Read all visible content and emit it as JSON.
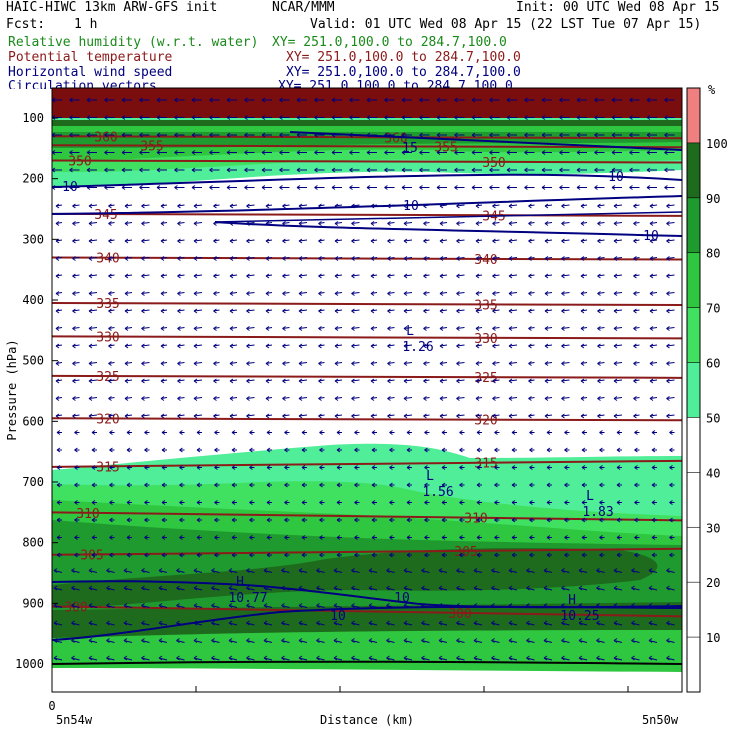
{
  "header": {
    "model": "HAIC-HIWC 13km ARW-GFS init",
    "org": "NCAR/MMM",
    "init": "Init: 00 UTC Wed 08 Apr 15",
    "fcst_label": "Fcst:",
    "fcst_value": "1 h",
    "valid": "Valid: 01 UTC Wed 08 Apr 15 (22 LST Tue 07 Apr 15)",
    "fields": [
      {
        "name": "Relative humidity (w.r.t. water)",
        "xy": "XY= 251.0,100.0 to 284.7,100.0",
        "color": "#1a8a1a"
      },
      {
        "name": "Potential temperature",
        "xy": "XY= 251.0,100.0 to 284.7,100.0",
        "color": "#8b1a1a"
      },
      {
        "name": "Horizontal wind speed",
        "xy": "XY= 251.0,100.0 to 284.7,100.0",
        "color": "#000080"
      },
      {
        "name": "Circulation vectors",
        "xy": "XY= 251.0,100.0 to 284.7,100.0",
        "color": "#000080"
      }
    ]
  },
  "chart_data": {
    "type": "heatmap",
    "ylabel": "Pressure (hPa)",
    "xlabel": "Distance (km)",
    "x_start_tick": "0",
    "x_left_label": "5n54w",
    "x_right_label": "5n50w",
    "y_ticks": [
      100,
      200,
      300,
      400,
      500,
      600,
      700,
      800,
      900,
      1000
    ],
    "colorbar": {
      "unit": "%",
      "ticks": [
        10,
        20,
        30,
        40,
        50,
        60,
        70,
        80,
        90,
        100
      ],
      "bands": [
        {
          "from": 100,
          "to": 110,
          "color": "#f08080"
        },
        {
          "from": 90,
          "to": 100,
          "color": "#1e6b1e"
        },
        {
          "from": 80,
          "to": 90,
          "color": "#1e9a2e"
        },
        {
          "from": 70,
          "to": 80,
          "color": "#2fc640"
        },
        {
          "from": 60,
          "to": 70,
          "color": "#40e060"
        },
        {
          "from": 50,
          "to": 60,
          "color": "#50ee98"
        },
        {
          "from": 0,
          "to": 50,
          "color": "#ffffff"
        }
      ]
    },
    "theta_contours": [
      {
        "label": "360",
        "p": 130
      },
      {
        "label": "355",
        "p": 145
      },
      {
        "label": "350",
        "p": 170
      },
      {
        "label": "345",
        "p": 258
      },
      {
        "label": "340",
        "p": 330
      },
      {
        "label": "335",
        "p": 405
      },
      {
        "label": "330",
        "p": 460
      },
      {
        "label": "325",
        "p": 525
      },
      {
        "label": "320",
        "p": 595
      },
      {
        "label": "315",
        "p": 675
      },
      {
        "label": "310",
        "p": 750
      },
      {
        "label": "305",
        "p": 820
      },
      {
        "label": "300",
        "p": 905
      }
    ],
    "wind_labels": [
      "10",
      "10",
      "10",
      "15",
      "10",
      "10",
      "10"
    ],
    "extrema": [
      {
        "mark": "L",
        "value": "1.26"
      },
      {
        "mark": "L",
        "value": "1.56"
      },
      {
        "mark": "L",
        "value": "1.83"
      },
      {
        "mark": "H",
        "value": "10.77"
      },
      {
        "mark": "H",
        "value": "10.25"
      }
    ]
  }
}
